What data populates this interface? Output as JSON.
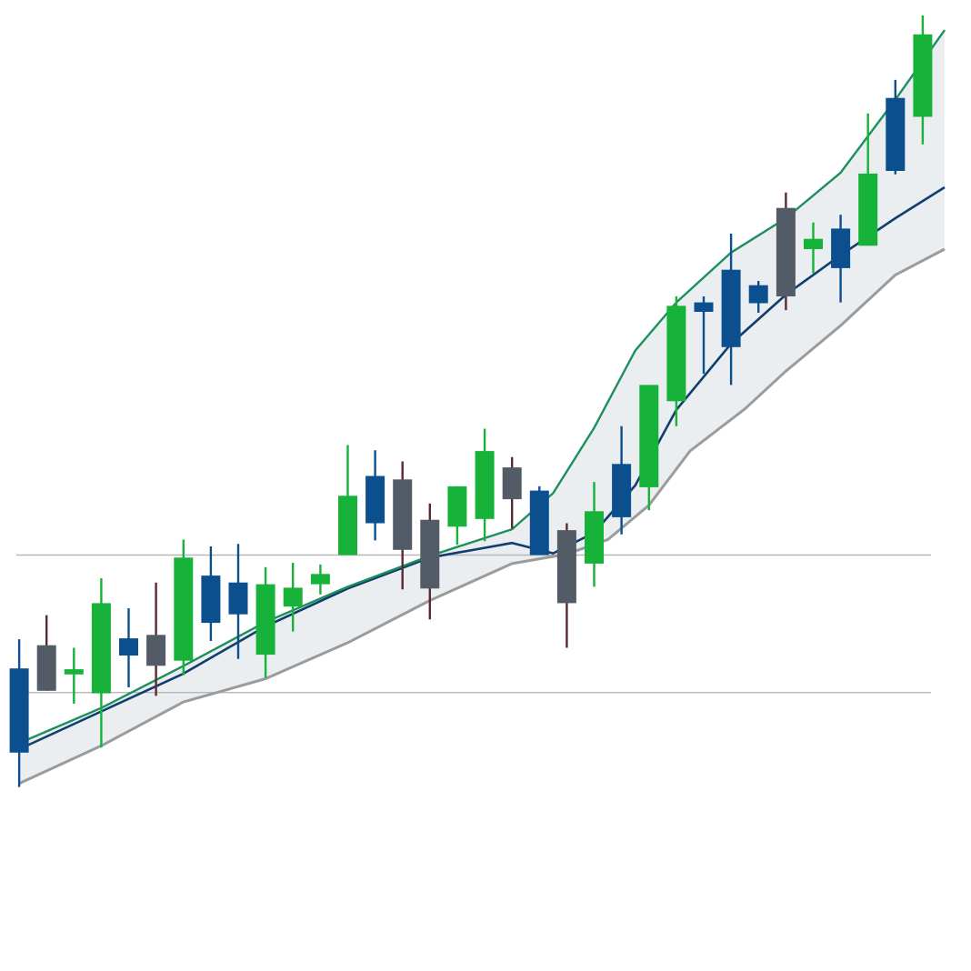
{
  "chart_data": {
    "type": "candlestick",
    "title": "",
    "xlabel": "",
    "ylabel": "",
    "x_range": [
      0,
      34
    ],
    "y_range": [
      0,
      100
    ],
    "grid": false,
    "horizontal_reference_lines": [
      37.2,
      21.2
    ],
    "colors": {
      "up": "#16b23a",
      "down_blue": "#0b4f8f",
      "down_gray": "#535b66",
      "wick_dark": "#5a2a33",
      "upper_band": "#1d8f5a",
      "middle_line": "#103e6e",
      "lower_band": "#9b9b9b",
      "band_fill": "#e6ebef",
      "reference_line": "#b7b7b7"
    },
    "candles": [
      {
        "x": 0,
        "color": "blue",
        "open": 24.0,
        "close": 14.2,
        "high": 27.4,
        "low": 10.2
      },
      {
        "x": 1,
        "color": "gray",
        "open": 26.7,
        "close": 21.4,
        "high": 30.2,
        "low": 21.4
      },
      {
        "x": 2,
        "color": "green",
        "open": 23.3,
        "close": 23.9,
        "high": 26.4,
        "low": 19.9
      },
      {
        "x": 3,
        "color": "green",
        "open": 21.1,
        "close": 31.6,
        "high": 34.5,
        "low": 14.8
      },
      {
        "x": 4,
        "color": "blue",
        "open": 27.5,
        "close": 25.5,
        "high": 31.0,
        "low": 21.8
      },
      {
        "x": 5,
        "color": "gray",
        "open": 27.9,
        "close": 24.3,
        "high": 34.0,
        "low": 20.8
      },
      {
        "x": 6,
        "color": "green",
        "open": 24.9,
        "close": 36.9,
        "high": 39.0,
        "low": 23.2
      },
      {
        "x": 7,
        "color": "blue",
        "open": 34.8,
        "close": 29.3,
        "high": 38.2,
        "low": 27.2
      },
      {
        "x": 8,
        "color": "blue",
        "open": 34.0,
        "close": 30.3,
        "high": 38.5,
        "low": 25.1
      },
      {
        "x": 9,
        "color": "green",
        "open": 25.6,
        "close": 33.8,
        "high": 35.8,
        "low": 22.9
      },
      {
        "x": 10,
        "color": "green",
        "open": 31.2,
        "close": 33.4,
        "high": 36.3,
        "low": 28.3
      },
      {
        "x": 11,
        "color": "green",
        "open": 33.8,
        "close": 35.0,
        "high": 36.1,
        "low": 32.6
      },
      {
        "x": 12,
        "color": "green",
        "open": 37.2,
        "close": 44.1,
        "high": 50.0,
        "low": 37.2
      },
      {
        "x": 13,
        "color": "blue",
        "open": 46.4,
        "close": 40.9,
        "high": 49.4,
        "low": 38.9
      },
      {
        "x": 14,
        "color": "gray",
        "open": 46.0,
        "close": 37.8,
        "high": 48.1,
        "low": 33.2
      },
      {
        "x": 15,
        "color": "gray",
        "open": 41.3,
        "close": 33.3,
        "high": 43.2,
        "low": 29.7
      },
      {
        "x": 16,
        "color": "green",
        "open": 40.5,
        "close": 45.2,
        "high": 45.2,
        "low": 38.4
      },
      {
        "x": 17,
        "color": "green",
        "open": 41.4,
        "close": 49.3,
        "high": 51.9,
        "low": 38.8
      },
      {
        "x": 18,
        "color": "gray",
        "open": 47.4,
        "close": 43.7,
        "high": 48.6,
        "low": 40.3
      },
      {
        "x": 19,
        "color": "blue",
        "open": 44.7,
        "close": 37.2,
        "high": 45.2,
        "low": 37.2
      },
      {
        "x": 20,
        "color": "gray",
        "open": 40.1,
        "close": 31.6,
        "high": 40.9,
        "low": 26.4
      },
      {
        "x": 21,
        "color": "green",
        "open": 36.2,
        "close": 42.3,
        "high": 45.7,
        "low": 33.5
      },
      {
        "x": 22,
        "color": "blue",
        "open": 47.8,
        "close": 41.6,
        "high": 52.2,
        "low": 39.6
      },
      {
        "x": 23,
        "color": "green",
        "open": 45.1,
        "close": 57.0,
        "high": 57.0,
        "low": 42.4
      },
      {
        "x": 24,
        "color": "green",
        "open": 55.1,
        "close": 66.2,
        "high": 67.3,
        "low": 52.2
      },
      {
        "x": 25,
        "color": "blue",
        "open": 66.6,
        "close": 65.5,
        "high": 67.3,
        "low": 58.3
      },
      {
        "x": 26,
        "color": "blue",
        "open": 70.4,
        "close": 61.4,
        "high": 74.6,
        "low": 57.0
      },
      {
        "x": 27,
        "color": "blue",
        "open": 68.6,
        "close": 66.5,
        "high": 69.1,
        "low": 65.4
      },
      {
        "x": 28,
        "color": "gray",
        "open": 77.6,
        "close": 67.3,
        "high": 79.4,
        "low": 65.7
      },
      {
        "x": 29,
        "color": "green",
        "open": 72.8,
        "close": 74.0,
        "high": 75.9,
        "low": 70.0
      },
      {
        "x": 30,
        "color": "blue",
        "open": 75.2,
        "close": 70.6,
        "high": 76.8,
        "low": 66.6
      },
      {
        "x": 31,
        "color": "green",
        "open": 73.2,
        "close": 81.6,
        "high": 88.6,
        "low": 73.2
      },
      {
        "x": 32,
        "color": "blue",
        "open": 90.4,
        "close": 81.9,
        "high": 92.5,
        "low": 81.5
      },
      {
        "x": 33,
        "color": "green",
        "open": 88.2,
        "close": 97.8,
        "high": 100.0,
        "low": 85.0
      }
    ],
    "upper_band": [
      {
        "x": 0,
        "y": 15.3
      },
      {
        "x": 3,
        "y": 19.4
      },
      {
        "x": 6,
        "y": 24.3
      },
      {
        "x": 9,
        "y": 29.4
      },
      {
        "x": 12,
        "y": 33.5
      },
      {
        "x": 15,
        "y": 37.1
      },
      {
        "x": 18,
        "y": 40.2
      },
      {
        "x": 19.5,
        "y": 44.4
      },
      {
        "x": 21,
        "y": 52.0
      },
      {
        "x": 22.5,
        "y": 61.0
      },
      {
        "x": 24,
        "y": 66.6
      },
      {
        "x": 26,
        "y": 72.4
      },
      {
        "x": 28,
        "y": 76.4
      },
      {
        "x": 30,
        "y": 81.7
      },
      {
        "x": 32,
        "y": 90.2
      },
      {
        "x": 33.8,
        "y": 98.3
      }
    ],
    "middle_line": [
      {
        "x": 0,
        "y": 14.6
      },
      {
        "x": 3,
        "y": 19.0
      },
      {
        "x": 6,
        "y": 23.4
      },
      {
        "x": 9,
        "y": 28.9
      },
      {
        "x": 12,
        "y": 33.3
      },
      {
        "x": 15,
        "y": 36.9
      },
      {
        "x": 18,
        "y": 38.6
      },
      {
        "x": 19.5,
        "y": 37.4
      },
      {
        "x": 21,
        "y": 39.8
      },
      {
        "x": 22.5,
        "y": 45.3
      },
      {
        "x": 24,
        "y": 54.1
      },
      {
        "x": 26,
        "y": 61.8
      },
      {
        "x": 28,
        "y": 67.5
      },
      {
        "x": 30,
        "y": 72.1
      },
      {
        "x": 32,
        "y": 76.4
      },
      {
        "x": 33.8,
        "y": 80.0
      }
    ],
    "lower_band": [
      {
        "x": 0,
        "y": 10.6
      },
      {
        "x": 3,
        "y": 15.0
      },
      {
        "x": 6,
        "y": 20.1
      },
      {
        "x": 9,
        "y": 22.8
      },
      {
        "x": 12,
        "y": 27.0
      },
      {
        "x": 15,
        "y": 31.9
      },
      {
        "x": 18,
        "y": 36.2
      },
      {
        "x": 20,
        "y": 37.3
      },
      {
        "x": 21.5,
        "y": 39.0
      },
      {
        "x": 23,
        "y": 43.0
      },
      {
        "x": 24.5,
        "y": 49.3
      },
      {
        "x": 26.5,
        "y": 54.2
      },
      {
        "x": 28,
        "y": 58.6
      },
      {
        "x": 30,
        "y": 63.9
      },
      {
        "x": 32,
        "y": 69.8
      },
      {
        "x": 33.8,
        "y": 72.8
      }
    ]
  }
}
